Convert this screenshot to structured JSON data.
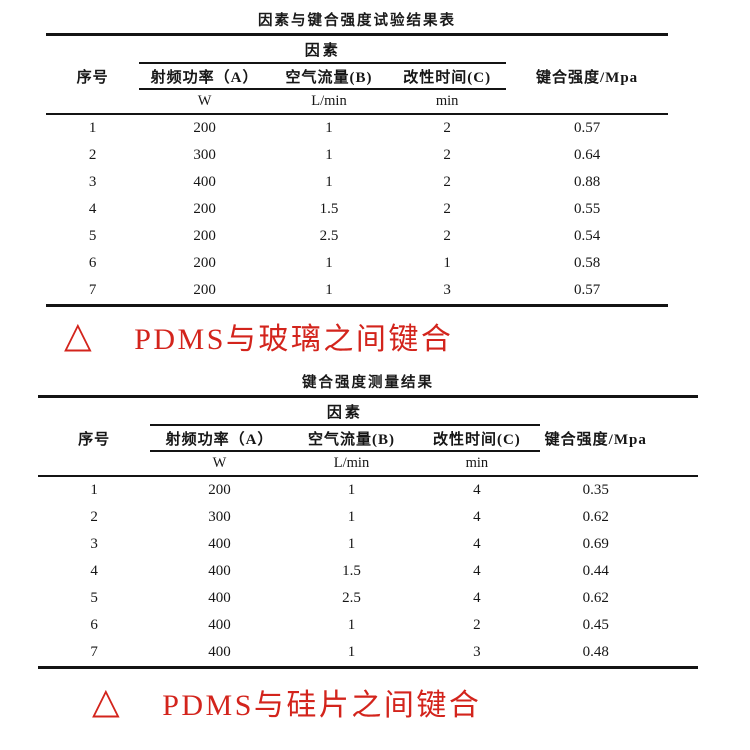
{
  "colors": {
    "caption_red": "#d3241c",
    "text_black": "#161616",
    "background": "#ffffff"
  },
  "table1": {
    "title": "因素与键合强度试验结果表",
    "group_header": "因素",
    "columns": [
      "序号",
      "射频功率（A）",
      "空气流量(B)",
      "改性时间(C)",
      "键合强度/Mpa"
    ],
    "units": [
      "W",
      "L/min",
      "min"
    ],
    "rows": [
      [
        "1",
        "200",
        "1",
        "2",
        "0.57"
      ],
      [
        "2",
        "300",
        "1",
        "2",
        "0.64"
      ],
      [
        "3",
        "400",
        "1",
        "2",
        "0.88"
      ],
      [
        "4",
        "200",
        "1.5",
        "2",
        "0.55"
      ],
      [
        "5",
        "200",
        "2.5",
        "2",
        "0.54"
      ],
      [
        "6",
        "200",
        "1",
        "1",
        "0.58"
      ],
      [
        "7",
        "200",
        "1",
        "3",
        "0.57"
      ]
    ]
  },
  "caption1": {
    "marker": "△",
    "text": "PDMS与玻璃之间键合"
  },
  "table2": {
    "title": "键合强度测量结果",
    "group_header": "因素",
    "columns": [
      "序号",
      "射频功率（A）",
      "空气流量(B)",
      "改性时间(C)",
      "键合强度/Mpa"
    ],
    "units": [
      "W",
      "L/min",
      "min"
    ],
    "rows": [
      [
        "1",
        "200",
        "1",
        "4",
        "0.35"
      ],
      [
        "2",
        "300",
        "1",
        "4",
        "0.62"
      ],
      [
        "3",
        "400",
        "1",
        "4",
        "0.69"
      ],
      [
        "4",
        "400",
        "1.5",
        "4",
        "0.44"
      ],
      [
        "5",
        "400",
        "2.5",
        "4",
        "0.62"
      ],
      [
        "6",
        "400",
        "1",
        "2",
        "0.45"
      ],
      [
        "7",
        "400",
        "1",
        "3",
        "0.48"
      ]
    ]
  },
  "caption2": {
    "marker": "△",
    "text": "PDMS与硅片之间键合"
  }
}
